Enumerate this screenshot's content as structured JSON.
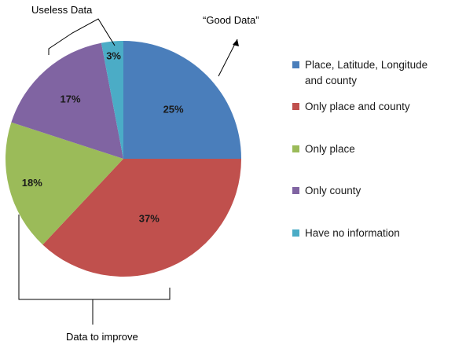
{
  "chart_data": {
    "type": "pie",
    "categories": [
      "Place, Latitude, Longitude and county",
      "Only place and county",
      "Only place",
      "Only county",
      "Have no information"
    ],
    "values": [
      25,
      37,
      18,
      17,
      3
    ],
    "value_labels": [
      "25%",
      "37%",
      "18%",
      "17%",
      "3%"
    ],
    "colors": [
      "#4A7EBB",
      "#C0504D",
      "#9BBB59",
      "#8064A2",
      "#4BACC6"
    ],
    "legend_lines": [
      [
        "Place, Latitude, Longitude",
        "and county"
      ],
      [
        "Only place and county"
      ],
      [
        "Only place"
      ],
      [
        "Only county"
      ],
      [
        "Have no information"
      ]
    ],
    "legend_position": "right",
    "start": "12 o'clock, clockwise",
    "annotations": {
      "good": "“Good Data”",
      "useless": "Useless Data",
      "improve": "Data to improve"
    }
  }
}
